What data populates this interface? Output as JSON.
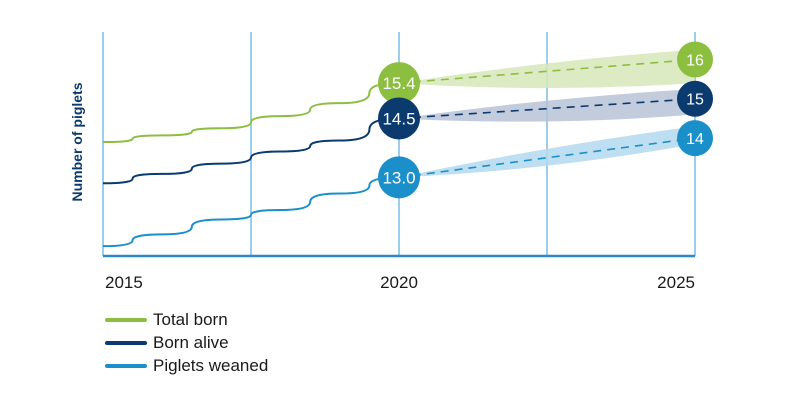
{
  "chart_data": {
    "type": "line",
    "ylabel": "Number of piglets",
    "xlabel": "",
    "x_ticks": [
      "2015",
      "2020",
      "2025"
    ],
    "xlim": [
      2015,
      2025
    ],
    "ylim": [
      11.0,
      16.7
    ],
    "grid": "vertical",
    "legend_position": "bottom-left",
    "series": [
      {
        "name": "Total born",
        "color": "#8cbe3f",
        "band_color": "#d6e8b8",
        "actual": [
          [
            2015,
            13.9
          ],
          [
            2016,
            14.07
          ],
          [
            2017,
            14.25
          ],
          [
            2018,
            14.56
          ],
          [
            2019,
            14.89
          ],
          [
            2020,
            15.4
          ]
        ],
        "projected": [
          [
            2020,
            15.4
          ],
          [
            2025,
            16
          ]
        ],
        "band_upper": [
          15.4,
          16.25
        ],
        "band_lower": [
          15.4,
          15.4
        ],
        "start_label": "15.4",
        "end_label": "16"
      },
      {
        "name": "Born alive",
        "color": "#0b3a6e",
        "band_color": "#b7c3d6",
        "actual": [
          [
            2015,
            12.85
          ],
          [
            2016,
            13.09
          ],
          [
            2017,
            13.35
          ],
          [
            2018,
            13.66
          ],
          [
            2019,
            13.94
          ],
          [
            2020,
            14.5
          ]
        ],
        "projected": [
          [
            2020,
            14.5
          ],
          [
            2025,
            15
          ]
        ],
        "band_upper": [
          14.5,
          15.25
        ],
        "band_lower": [
          14.5,
          14.6
        ],
        "start_label": "14.5",
        "end_label": "15"
      },
      {
        "name": "Piglets weaned",
        "color": "#1b8fc9",
        "band_color": "#b3d9ef",
        "actual": [
          [
            2015,
            11.25
          ],
          [
            2016,
            11.55
          ],
          [
            2017,
            11.93
          ],
          [
            2018,
            12.17
          ],
          [
            2019,
            12.59
          ],
          [
            2020,
            13.0
          ]
        ],
        "projected": [
          [
            2020,
            13.0
          ],
          [
            2025,
            14
          ]
        ],
        "band_upper": [
          13.0,
          14.3
        ],
        "band_lower": [
          13.0,
          13.85
        ],
        "start_label": "13.0",
        "end_label": "14"
      }
    ]
  }
}
